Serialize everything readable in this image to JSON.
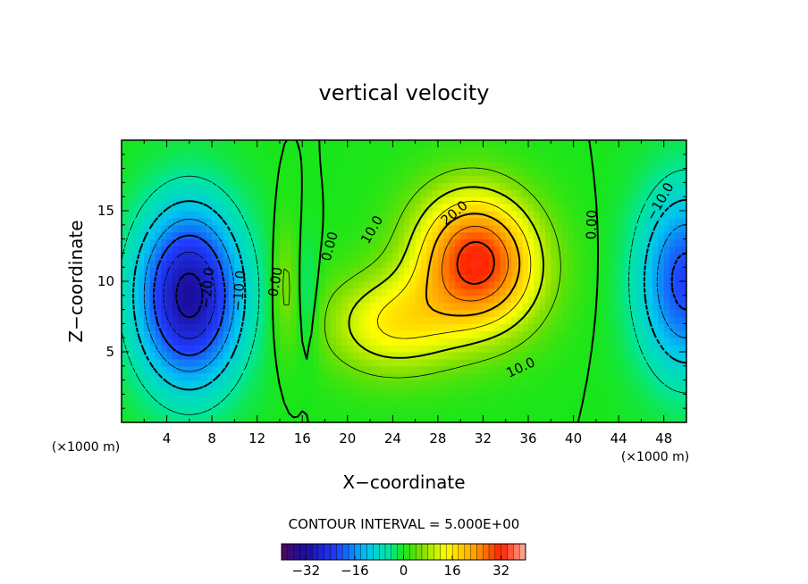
{
  "chart_data": {
    "type": "heatmap",
    "title": "vertical velocity",
    "xlabel": "X−coordinate",
    "ylabel": "Z−coordinate",
    "x_unit_left": "(×1000 m)",
    "x_unit_right": "(×1000 m)",
    "xlim": [
      0,
      50
    ],
    "ylim": [
      0,
      20
    ],
    "x_ticks": [
      4,
      8,
      12,
      16,
      20,
      24,
      28,
      32,
      36,
      40,
      44,
      48
    ],
    "y_ticks": [
      5,
      10,
      15
    ],
    "contour_interval_text": "CONTOUR INTERVAL = 5.000E+00",
    "contour_interval": 5.0,
    "colorbar": {
      "range": [
        -40,
        40
      ],
      "ticks": [
        -32,
        -16,
        0,
        16,
        32
      ],
      "tick_labels": [
        "−32",
        "−16",
        "0",
        "16",
        "32"
      ]
    },
    "contour_labels": [
      {
        "text": "0.00",
        "x": 14.0,
        "y": 9.9,
        "angle": -80
      },
      {
        "text": "−20.0",
        "x": 8.0,
        "y": 9.5,
        "angle": -85
      },
      {
        "text": "−10.0",
        "x": 10.8,
        "y": 9.3,
        "angle": -85
      },
      {
        "text": "0.00",
        "x": 18.8,
        "y": 12.4,
        "angle": -75
      },
      {
        "text": "10.0",
        "x": 22.5,
        "y": 13.5,
        "angle": -60
      },
      {
        "text": "20.0",
        "x": 29.7,
        "y": 14.6,
        "angle": -40
      },
      {
        "text": "10.0",
        "x": 35.5,
        "y": 3.6,
        "angle": -25
      },
      {
        "text": "0.00",
        "x": 42.0,
        "y": 14.0,
        "angle": -88
      },
      {
        "text": "−10.0",
        "x": 48.0,
        "y": 15.5,
        "angle": -60
      }
    ],
    "features": [
      {
        "name": "downdraft-core",
        "x": 6.0,
        "y": 9.0,
        "value": -32
      },
      {
        "name": "updraft-core",
        "x": 31.5,
        "y": 11.5,
        "value": 32
      },
      {
        "name": "right-downdraft",
        "x": 50.0,
        "y": 10.0,
        "value": -22
      }
    ]
  }
}
